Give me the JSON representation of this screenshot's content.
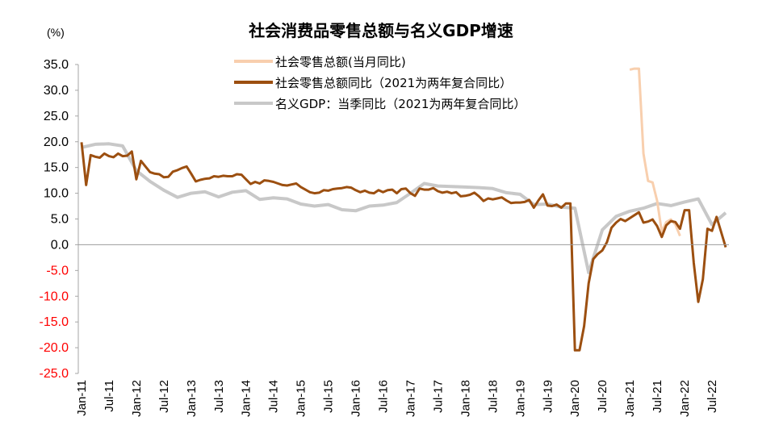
{
  "chart_data": {
    "type": "line",
    "title": "社会消费品零售总额与名义GDP增速",
    "unit_label": "(%)",
    "ylim": [
      -25,
      35
    ],
    "y_ticks": [
      "35.0",
      "30.0",
      "25.0",
      "20.0",
      "15.0",
      "10.0",
      "5.0",
      "0.0",
      "-5.0",
      "-10.0",
      "-15.0",
      "-20.0",
      "-25.0"
    ],
    "x_ticks": [
      "Jan-11",
      "Jul-11",
      "Jan-12",
      "Jul-12",
      "Jan-13",
      "Jul-13",
      "Jan-14",
      "Jul-14",
      "Jan-15",
      "Jul-15",
      "Jan-16",
      "Jul-16",
      "Jan-17",
      "Jul-17",
      "Jan-18",
      "Jul-18",
      "Jan-19",
      "Jul-19",
      "Jan-20",
      "Jul-20",
      "Jan-21",
      "Jul-21",
      "Jan-22",
      "Jul-22"
    ],
    "negative_tick_color": "#ff0000",
    "grid": false,
    "legend_position": "top",
    "series": [
      {
        "name": "社会零售总额(当月同比)",
        "color": "#f8cfae",
        "points": [
          [
            "2021-01",
            34.0
          ],
          [
            "2021-02",
            34.2
          ],
          [
            "2021-03",
            34.2
          ],
          [
            "2021-04",
            17.7
          ],
          [
            "2021-05",
            12.4
          ],
          [
            "2021-06",
            12.1
          ],
          [
            "2021-07",
            8.5
          ],
          [
            "2021-08",
            2.5
          ],
          [
            "2021-09",
            4.4
          ],
          [
            "2021-10",
            4.9
          ],
          [
            "2021-11",
            3.9
          ],
          [
            "2021-12",
            1.7
          ]
        ]
      },
      {
        "name": "社会零售总额同比（2021为两年复合同比）",
        "color": "#9c4f10",
        "points": [
          [
            "2011-01",
            19.9
          ],
          [
            "2011-02",
            11.6
          ],
          [
            "2011-03",
            17.4
          ],
          [
            "2011-04",
            17.1
          ],
          [
            "2011-05",
            16.9
          ],
          [
            "2011-06",
            17.7
          ],
          [
            "2011-07",
            17.2
          ],
          [
            "2011-08",
            17.0
          ],
          [
            "2011-09",
            17.7
          ],
          [
            "2011-10",
            17.2
          ],
          [
            "2011-11",
            17.3
          ],
          [
            "2011-12",
            18.1
          ],
          [
            "2012-01",
            12.7
          ],
          [
            "2012-02",
            16.3
          ],
          [
            "2012-03",
            15.2
          ],
          [
            "2012-04",
            14.1
          ],
          [
            "2012-05",
            13.8
          ],
          [
            "2012-06",
            13.7
          ],
          [
            "2012-07",
            13.1
          ],
          [
            "2012-08",
            13.2
          ],
          [
            "2012-09",
            14.2
          ],
          [
            "2012-10",
            14.5
          ],
          [
            "2012-11",
            14.9
          ],
          [
            "2012-12",
            15.2
          ],
          [
            "2013-01",
            13.8
          ],
          [
            "2013-02",
            12.3
          ],
          [
            "2013-03",
            12.6
          ],
          [
            "2013-04",
            12.8
          ],
          [
            "2013-05",
            12.9
          ],
          [
            "2013-06",
            13.3
          ],
          [
            "2013-07",
            13.2
          ],
          [
            "2013-08",
            13.4
          ],
          [
            "2013-09",
            13.3
          ],
          [
            "2013-10",
            13.3
          ],
          [
            "2013-11",
            13.7
          ],
          [
            "2013-12",
            13.6
          ],
          [
            "2014-01",
            12.7
          ],
          [
            "2014-02",
            11.8
          ],
          [
            "2014-03",
            12.2
          ],
          [
            "2014-04",
            11.9
          ],
          [
            "2014-05",
            12.5
          ],
          [
            "2014-06",
            12.4
          ],
          [
            "2014-07",
            12.2
          ],
          [
            "2014-08",
            11.9
          ],
          [
            "2014-09",
            11.6
          ],
          [
            "2014-10",
            11.5
          ],
          [
            "2014-11",
            11.7
          ],
          [
            "2014-12",
            11.9
          ],
          [
            "2015-01",
            11.2
          ],
          [
            "2015-02",
            10.7
          ],
          [
            "2015-03",
            10.2
          ],
          [
            "2015-04",
            10.0
          ],
          [
            "2015-05",
            10.1
          ],
          [
            "2015-06",
            10.6
          ],
          [
            "2015-07",
            10.5
          ],
          [
            "2015-08",
            10.8
          ],
          [
            "2015-09",
            10.9
          ],
          [
            "2015-10",
            11.0
          ],
          [
            "2015-11",
            11.2
          ],
          [
            "2015-12",
            11.1
          ],
          [
            "2016-01",
            10.6
          ],
          [
            "2016-02",
            10.2
          ],
          [
            "2016-03",
            10.5
          ],
          [
            "2016-04",
            10.1
          ],
          [
            "2016-05",
            10.0
          ],
          [
            "2016-06",
            10.6
          ],
          [
            "2016-07",
            10.2
          ],
          [
            "2016-08",
            10.6
          ],
          [
            "2016-09",
            10.7
          ],
          [
            "2016-10",
            10.0
          ],
          [
            "2016-11",
            10.8
          ],
          [
            "2016-12",
            10.9
          ],
          [
            "2017-01",
            10.0
          ],
          [
            "2017-02",
            9.5
          ],
          [
            "2017-03",
            10.9
          ],
          [
            "2017-04",
            10.7
          ],
          [
            "2017-05",
            10.7
          ],
          [
            "2017-06",
            11.0
          ],
          [
            "2017-07",
            10.4
          ],
          [
            "2017-08",
            10.1
          ],
          [
            "2017-09",
            10.3
          ],
          [
            "2017-10",
            10.0
          ],
          [
            "2017-11",
            10.2
          ],
          [
            "2017-12",
            9.4
          ],
          [
            "2018-01",
            9.5
          ],
          [
            "2018-02",
            9.7
          ],
          [
            "2018-03",
            10.1
          ],
          [
            "2018-04",
            9.4
          ],
          [
            "2018-05",
            8.5
          ],
          [
            "2018-06",
            9.0
          ],
          [
            "2018-07",
            8.8
          ],
          [
            "2018-08",
            9.0
          ],
          [
            "2018-09",
            9.2
          ],
          [
            "2018-10",
            8.6
          ],
          [
            "2018-11",
            8.1
          ],
          [
            "2018-12",
            8.2
          ],
          [
            "2019-01",
            8.2
          ],
          [
            "2019-02",
            8.3
          ],
          [
            "2019-03",
            8.7
          ],
          [
            "2019-04",
            7.2
          ],
          [
            "2019-05",
            8.6
          ],
          [
            "2019-06",
            9.8
          ],
          [
            "2019-07",
            7.6
          ],
          [
            "2019-08",
            7.5
          ],
          [
            "2019-09",
            7.8
          ],
          [
            "2019-10",
            7.2
          ],
          [
            "2019-11",
            8.0
          ],
          [
            "2019-12",
            8.0
          ],
          [
            "2020-01",
            -20.5
          ],
          [
            "2020-02",
            -20.5
          ],
          [
            "2020-03",
            -15.8
          ],
          [
            "2020-04",
            -7.5
          ],
          [
            "2020-05",
            -2.8
          ],
          [
            "2020-06",
            -1.8
          ],
          [
            "2020-07",
            -1.1
          ],
          [
            "2020-08",
            0.5
          ],
          [
            "2020-09",
            3.3
          ],
          [
            "2020-10",
            4.3
          ],
          [
            "2020-11",
            5.0
          ],
          [
            "2020-12",
            4.6
          ],
          [
            "2021-03",
            6.3
          ],
          [
            "2021-04",
            4.3
          ],
          [
            "2021-05",
            4.5
          ],
          [
            "2021-06",
            4.9
          ],
          [
            "2021-07",
            3.6
          ],
          [
            "2021-08",
            1.5
          ],
          [
            "2021-09",
            3.8
          ],
          [
            "2021-10",
            4.6
          ],
          [
            "2021-11",
            4.4
          ],
          [
            "2021-12",
            3.1
          ],
          [
            "2022-01",
            6.7
          ],
          [
            "2022-02",
            6.7
          ],
          [
            "2022-03",
            -3.5
          ],
          [
            "2022-04",
            -11.1
          ],
          [
            "2022-05",
            -6.7
          ],
          [
            "2022-06",
            3.1
          ],
          [
            "2022-07",
            2.7
          ],
          [
            "2022-08",
            5.4
          ],
          [
            "2022-09",
            2.5
          ],
          [
            "2022-10",
            -0.5
          ]
        ]
      },
      {
        "name": "名义GDP：当季同比（2021为两年复合同比）",
        "color": "#c8c8c8",
        "points": [
          [
            "2011-01",
            18.9
          ],
          [
            "2011-04",
            19.5
          ],
          [
            "2011-07",
            19.6
          ],
          [
            "2011-10",
            19.2
          ],
          [
            "2012-01",
            14.4
          ],
          [
            "2012-04",
            12.3
          ],
          [
            "2012-07",
            10.6
          ],
          [
            "2012-10",
            9.2
          ],
          [
            "2013-01",
            10.0
          ],
          [
            "2013-04",
            10.3
          ],
          [
            "2013-07",
            9.3
          ],
          [
            "2013-10",
            10.2
          ],
          [
            "2014-01",
            10.5
          ],
          [
            "2014-04",
            8.8
          ],
          [
            "2014-07",
            9.1
          ],
          [
            "2014-10",
            8.9
          ],
          [
            "2015-01",
            7.9
          ],
          [
            "2015-04",
            7.5
          ],
          [
            "2015-07",
            7.8
          ],
          [
            "2015-10",
            6.8
          ],
          [
            "2016-01",
            6.6
          ],
          [
            "2016-04",
            7.5
          ],
          [
            "2016-07",
            7.7
          ],
          [
            "2016-10",
            8.2
          ],
          [
            "2017-01",
            10.0
          ],
          [
            "2017-04",
            11.9
          ],
          [
            "2017-07",
            11.4
          ],
          [
            "2017-10",
            11.3
          ],
          [
            "2018-01",
            11.2
          ],
          [
            "2018-04",
            11.1
          ],
          [
            "2018-07",
            10.9
          ],
          [
            "2018-10",
            10.1
          ],
          [
            "2019-01",
            9.8
          ],
          [
            "2019-04",
            7.8
          ],
          [
            "2019-07",
            7.9
          ],
          [
            "2019-10",
            7.3
          ],
          [
            "2020-01",
            7.1
          ],
          [
            "2020-04",
            -5.4
          ],
          [
            "2020-07",
            2.9
          ],
          [
            "2020-10",
            5.5
          ],
          [
            "2021-01",
            6.5
          ],
          [
            "2021-04",
            7.1
          ],
          [
            "2021-07",
            8.0
          ],
          [
            "2021-10",
            7.6
          ],
          [
            "2022-01",
            8.3
          ],
          [
            "2022-04",
            8.9
          ],
          [
            "2022-07",
            3.9
          ],
          [
            "2022-10",
            6.2
          ]
        ]
      }
    ],
    "series_styles": [
      "solid",
      "solid",
      "solid"
    ]
  }
}
